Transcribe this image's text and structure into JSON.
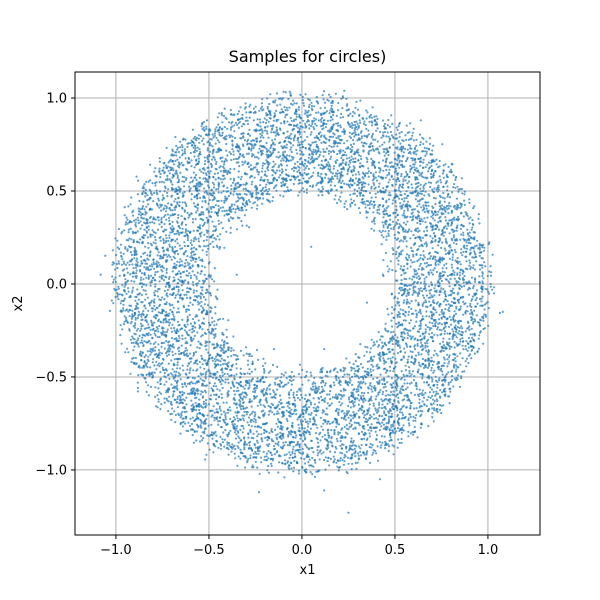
{
  "chart_data": {
    "type": "scatter",
    "title": "Samples for circles)",
    "xlabel": "x1",
    "ylabel": "x2",
    "xlim": [
      -1.22,
      1.28
    ],
    "ylim": [
      -1.35,
      1.14
    ],
    "xticks": [
      -1.0,
      -0.5,
      0.0,
      0.5,
      1.0
    ],
    "yticks": [
      -1.0,
      -0.5,
      0.0,
      0.5,
      1.0
    ],
    "xtick_labels": [
      "−1.0",
      "−0.5",
      "0.0",
      "0.5",
      "1.0"
    ],
    "ytick_labels": [
      "−1.0",
      "−0.5",
      "0.0",
      "0.5",
      "1.0"
    ],
    "grid": true,
    "point_color": "#1f77b4",
    "point_alpha": 0.7,
    "distribution": {
      "shape": "annulus",
      "center": [
        0.0,
        0.0
      ],
      "inner_radius": 0.5,
      "outer_radius": 1.0,
      "approx_count": 8000
    },
    "outliers": [
      {
        "x": 0.25,
        "y": -1.23
      },
      {
        "x": -0.23,
        "y": -1.12
      },
      {
        "x": 0.12,
        "y": -1.11
      },
      {
        "x": 1.08,
        "y": -0.15
      },
      {
        "x": -1.02,
        "y": 0.04
      },
      {
        "x": 0.02,
        "y": 1.02
      },
      {
        "x": -0.17,
        "y": 1.02
      },
      {
        "x": 0.42,
        "y": -1.05
      },
      {
        "x": -0.33,
        "y": 0.95
      },
      {
        "x": 0.38,
        "y": 0.95
      },
      {
        "x": -0.6,
        "y": -0.1
      },
      {
        "x": 0.35,
        "y": -0.1
      },
      {
        "x": -0.35,
        "y": 0.05
      },
      {
        "x": 0.12,
        "y": -0.35
      },
      {
        "x": -0.15,
        "y": -0.35
      },
      {
        "x": 0.05,
        "y": 0.2
      }
    ]
  }
}
